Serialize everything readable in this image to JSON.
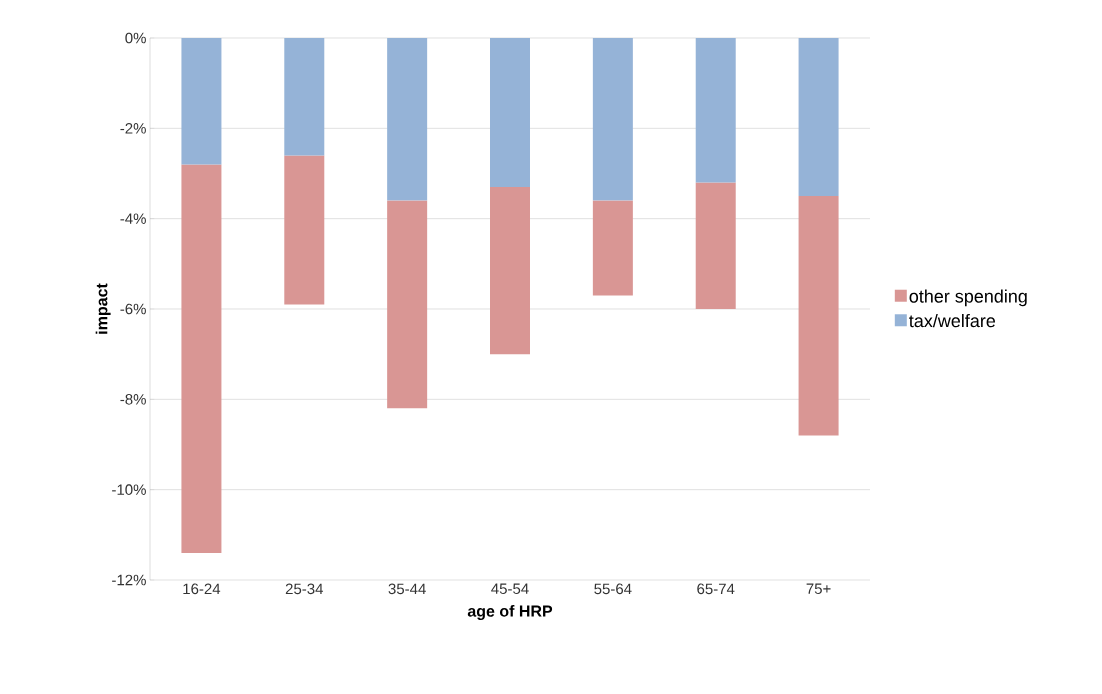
{
  "chart_data": {
    "type": "bar",
    "stacked": true,
    "xlabel": "age of HRP",
    "ylabel": "impact",
    "categories": [
      "16-24",
      "25-34",
      "35-44",
      "45-54",
      "55-64",
      "65-74",
      "75+"
    ],
    "series": [
      {
        "name": "tax/welfare",
        "color": "#95b3d7",
        "values": [
          -2.8,
          -2.6,
          -3.6,
          -3.3,
          -3.6,
          -3.2,
          -3.5
        ]
      },
      {
        "name": "other spending",
        "color": "#d99694",
        "values": [
          -8.6,
          -3.3,
          -4.6,
          -3.7,
          -2.1,
          -2.8,
          -5.3
        ]
      }
    ],
    "ylim": [
      -12,
      0
    ],
    "yticks": [
      {
        "value": -12,
        "label": "-12%"
      },
      {
        "value": -10,
        "label": "-10%"
      },
      {
        "value": -8,
        "label": "-8%"
      },
      {
        "value": -6,
        "label": "-6%"
      },
      {
        "value": -4,
        "label": "-4%"
      },
      {
        "value": -2,
        "label": "-2%"
      },
      {
        "value": 0,
        "label": "0%"
      }
    ],
    "grid": "y",
    "legend": "right"
  }
}
